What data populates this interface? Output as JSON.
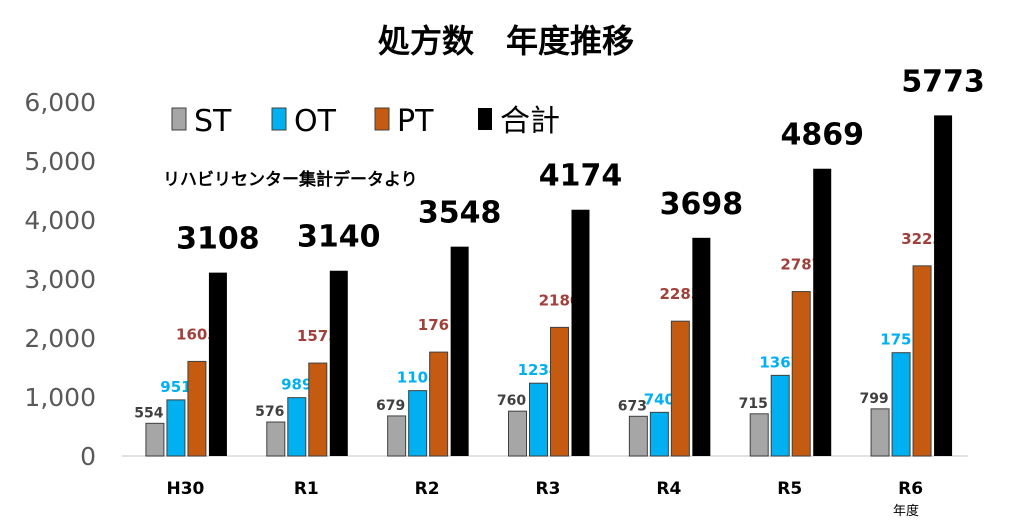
{
  "chart_data": {
    "type": "bar",
    "title": "処方数　年度推移",
    "note": "リハビリセンター集計データより",
    "x_unit": "年度",
    "categories": [
      "H30",
      "R1",
      "R2",
      "R3",
      "R4",
      "R5",
      "R6"
    ],
    "series": [
      {
        "name": "ST",
        "color": "#a6a6a6",
        "label_color": "#404040",
        "values": [
          554,
          576,
          679,
          760,
          673,
          715,
          799
        ]
      },
      {
        "name": "OT",
        "color": "#00b0f0",
        "label_color": "#00b0f0",
        "values": [
          951,
          989,
          1108,
          1234,
          740,
          1367,
          1751
        ]
      },
      {
        "name": "PT",
        "color": "#c55a11",
        "label_color": "#a0403a",
        "values": [
          1603,
          1575,
          1761,
          2180,
          2285,
          2787,
          3223
        ]
      },
      {
        "name": "合計",
        "color": "#000000",
        "label_color": "#000000",
        "values": [
          3108,
          3140,
          3548,
          4174,
          3698,
          4869,
          5773
        ]
      }
    ],
    "y_ticks": [
      "0",
      "1,000",
      "2,000",
      "3,000",
      "4,000",
      "5,000",
      "6,000"
    ],
    "ylim": [
      0,
      6000
    ],
    "grid": false,
    "legend": "top-left"
  }
}
